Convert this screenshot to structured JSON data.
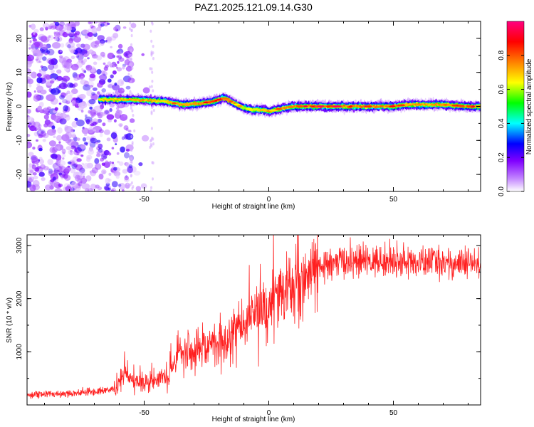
{
  "title": "PAZ1.2025.121.09.14.G30",
  "chart_data": [
    {
      "type": "heatmap",
      "xlabel": "Height of straight line (km)",
      "ylabel": "Frequency (Hz)",
      "xlim": [
        -97,
        85
      ],
      "ylim": [
        -25,
        25
      ],
      "xticks": [
        "-50",
        "0",
        "50"
      ],
      "yticks": [
        "20",
        "10",
        "0",
        "-10",
        "-20"
      ],
      "colorbar": {
        "label": "Normalized spectral amplitude",
        "range": [
          0,
          1
        ],
        "ticks": [
          "0.0",
          "0.2",
          "0.4",
          "0.6",
          "0.8"
        ],
        "colors": [
          "#ffffff",
          "#c080ff",
          "#8000ff",
          "#0000ff",
          "#00ffff",
          "#00ff00",
          "#ffff00",
          "#ff8000",
          "#ff0000",
          "#ff0080"
        ]
      },
      "ridge": {
        "description_points_x": [
          -68,
          -60,
          -50,
          -42,
          -35,
          -28,
          -22,
          -18,
          -14,
          -10,
          -6,
          -2,
          0,
          4,
          10,
          20,
          30,
          40,
          50,
          55,
          60,
          70,
          80,
          85
        ],
        "frequency_hz": [
          2.0,
          2.0,
          1.8,
          1.5,
          0.5,
          0.8,
          1.5,
          2.5,
          1.0,
          -0.5,
          -1.0,
          -1.0,
          -1.5,
          -0.8,
          0.0,
          0.0,
          0.0,
          0.0,
          0.0,
          0.5,
          0.5,
          0.5,
          0.0,
          0.0
        ],
        "peak_amplitude": [
          0.7,
          0.75,
          0.8,
          0.7,
          0.85,
          0.9,
          0.9,
          0.85,
          0.8,
          0.7,
          0.7,
          0.75,
          0.75,
          0.8,
          0.9,
          0.95,
          0.95,
          0.95,
          0.9,
          0.85,
          0.85,
          0.85,
          0.9,
          0.85
        ]
      },
      "noise_region_x": [
        -97,
        -55
      ],
      "noise_amplitude": 0.35
    },
    {
      "type": "line",
      "xlabel": "Height of straight line (km)",
      "ylabel": "SNR (10 * v/v)",
      "xlim": [
        -97,
        85
      ],
      "ylim": [
        0,
        3200
      ],
      "xticks": [
        "-50",
        "0",
        "50"
      ],
      "yticks": [
        "1000",
        "2000",
        "3000"
      ],
      "color": "#ff2020",
      "series": [
        {
          "x": [
            -97,
            -90,
            -80,
            -70,
            -62,
            -58,
            -55,
            -50,
            -45,
            -40,
            -36,
            -33,
            -30,
            -25,
            -20,
            -15,
            -10,
            -5,
            0,
            5,
            10,
            15,
            20,
            25,
            30,
            35,
            40,
            45,
            50,
            55,
            60,
            65,
            70,
            75,
            80,
            85
          ],
          "values": [
            200,
            200,
            220,
            250,
            300,
            550,
            500,
            450,
            500,
            550,
            950,
            1050,
            1050,
            1150,
            1200,
            1300,
            1500,
            1700,
            1900,
            2100,
            2250,
            2400,
            2550,
            2650,
            2700,
            2700,
            2700,
            2700,
            2700,
            2700,
            2650,
            2700,
            2700,
            2650,
            2650,
            2650
          ]
        }
      ]
    }
  ]
}
